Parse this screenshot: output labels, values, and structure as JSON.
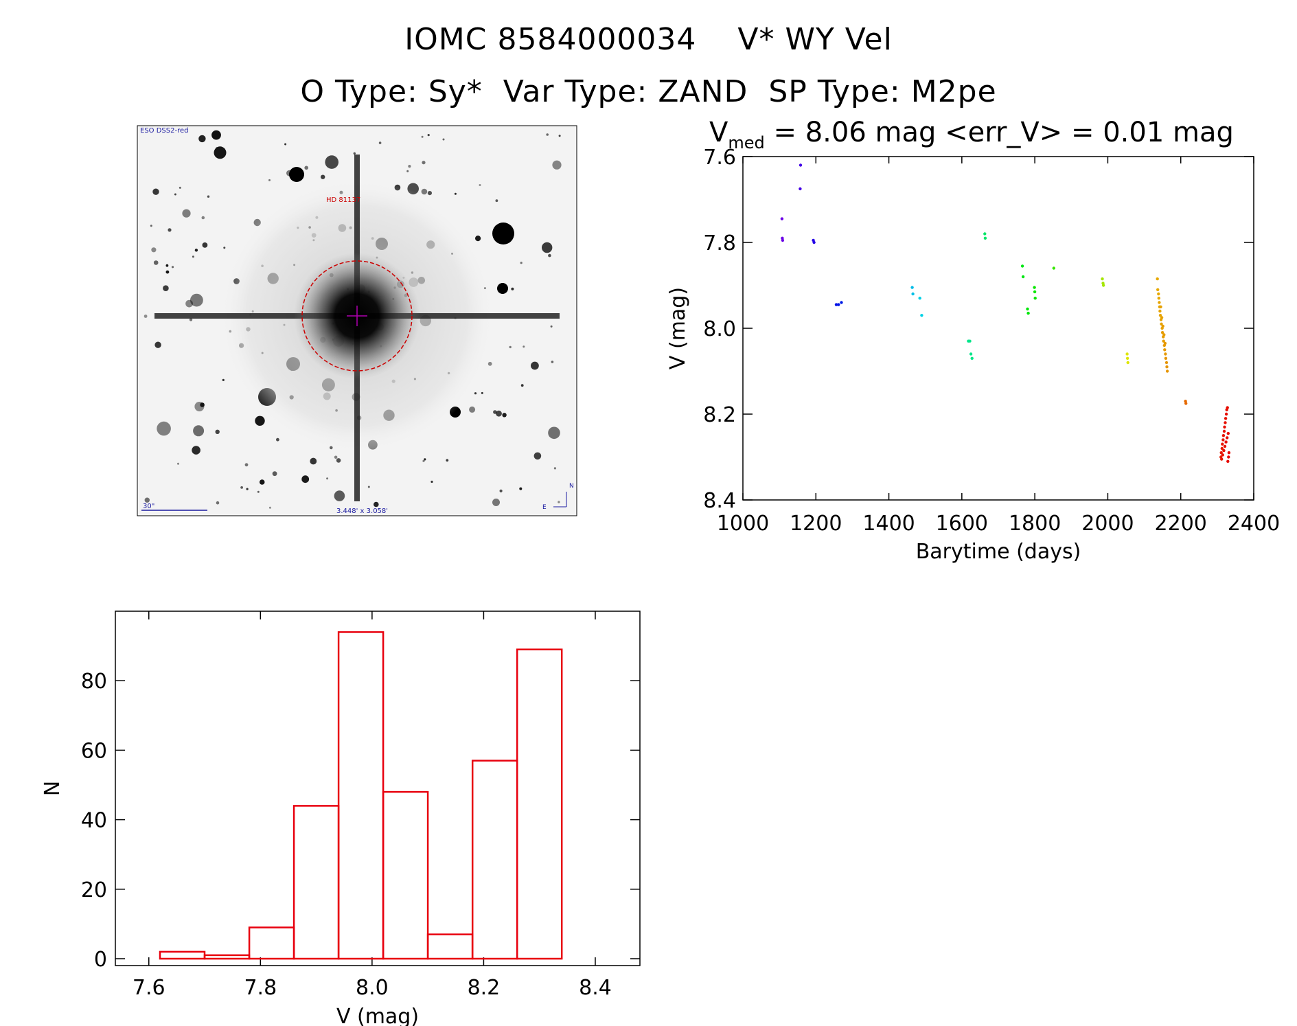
{
  "header": {
    "title_line1": "IOMC 8584000034    V* WY Vel",
    "title_line2": "O Type: Sy*  Var Type: ZAND  SP Type: M2pe"
  },
  "finder_image": {
    "top_left_label": "ESO DSS2-red",
    "target_label": "HD 81137",
    "scale_bar_label": "30\"",
    "field_size_label": "3.448' x 3.058'",
    "compass_north": "N",
    "compass_east": "E"
  },
  "colors": {
    "histogram": "#e8000e",
    "marker_ring": "#cc0000",
    "label_blue": "#1a1aa0",
    "label_red": "#cc0000"
  },
  "chart_data": [
    {
      "type": "scatter",
      "title_main": "V",
      "title_sub": "med",
      "title_rest": " = 8.06 mag <err_V> = 0.01 mag",
      "xlabel": "Barytime (days)",
      "ylabel": "V (mag)",
      "xlim": [
        1000,
        2400
      ],
      "ylim": [
        8.4,
        7.6
      ],
      "y_inverted": true,
      "xticks": [
        1000,
        1200,
        1400,
        1600,
        1800,
        2000,
        2200,
        2400
      ],
      "yticks": [
        7.6,
        7.8,
        8.0,
        8.2,
        8.4
      ],
      "color_scale": "rainbow by time",
      "points": [
        [
          1107,
          7.745
        ],
        [
          1108,
          7.79
        ],
        [
          1109,
          7.795
        ],
        [
          1158,
          7.62
        ],
        [
          1157,
          7.675
        ],
        [
          1193,
          7.795
        ],
        [
          1195,
          7.8
        ],
        [
          1256,
          7.945
        ],
        [
          1262,
          7.945
        ],
        [
          1270,
          7.94
        ],
        [
          1464,
          7.905
        ],
        [
          1466,
          7.92
        ],
        [
          1485,
          7.93
        ],
        [
          1490,
          7.97
        ],
        [
          1618,
          8.03
        ],
        [
          1622,
          8.03
        ],
        [
          1625,
          8.06
        ],
        [
          1628,
          8.07
        ],
        [
          1663,
          7.78
        ],
        [
          1664,
          7.79
        ],
        [
          1766,
          7.855
        ],
        [
          1768,
          7.88
        ],
        [
          1780,
          7.955
        ],
        [
          1782,
          7.965
        ],
        [
          1799,
          7.905
        ],
        [
          1800,
          7.915
        ],
        [
          1801,
          7.93
        ],
        [
          1852,
          7.86
        ],
        [
          1985,
          7.885
        ],
        [
          1987,
          7.895
        ],
        [
          1988,
          7.9
        ],
        [
          2053,
          8.06
        ],
        [
          2054,
          8.07
        ],
        [
          2055,
          8.08
        ],
        [
          2136,
          7.885
        ],
        [
          2137,
          7.91
        ],
        [
          2139,
          7.92
        ],
        [
          2140,
          7.93
        ],
        [
          2142,
          7.95
        ],
        [
          2143,
          7.96
        ],
        [
          2144,
          7.97
        ],
        [
          2146,
          7.98
        ],
        [
          2147,
          7.99
        ],
        [
          2149,
          8.0
        ],
        [
          2150,
          8.01
        ],
        [
          2152,
          8.02
        ],
        [
          2153,
          8.03
        ],
        [
          2155,
          8.04
        ],
        [
          2156,
          8.05
        ],
        [
          2158,
          8.06
        ],
        [
          2159,
          8.07
        ],
        [
          2161,
          8.08
        ],
        [
          2162,
          8.09
        ],
        [
          2163,
          8.1
        ],
        [
          2141,
          7.94
        ],
        [
          2145,
          7.95
        ],
        [
          2148,
          7.975
        ],
        [
          2151,
          7.995
        ],
        [
          2154,
          8.015
        ],
        [
          2157,
          8.035
        ],
        [
          2213,
          8.17
        ],
        [
          2214,
          8.175
        ],
        [
          2310,
          8.3
        ],
        [
          2311,
          8.29
        ],
        [
          2313,
          8.28
        ],
        [
          2314,
          8.27
        ],
        [
          2316,
          8.26
        ],
        [
          2317,
          8.25
        ],
        [
          2319,
          8.24
        ],
        [
          2320,
          8.23
        ],
        [
          2322,
          8.22
        ],
        [
          2323,
          8.21
        ],
        [
          2325,
          8.2
        ],
        [
          2326,
          8.19
        ],
        [
          2328,
          8.185
        ],
        [
          2315,
          8.295
        ],
        [
          2318,
          8.285
        ],
        [
          2321,
          8.275
        ],
        [
          2324,
          8.265
        ],
        [
          2327,
          8.255
        ],
        [
          2330,
          8.245
        ],
        [
          2331,
          8.3
        ],
        [
          2329,
          8.31
        ],
        [
          2312,
          8.305
        ],
        [
          2332,
          8.29
        ]
      ]
    },
    {
      "type": "histogram",
      "xlabel": "V (mag)",
      "ylabel": "N",
      "xlim": [
        7.54,
        8.48
      ],
      "ylim": [
        0,
        100
      ],
      "xticks": [
        7.6,
        7.8,
        8.0,
        8.2,
        8.4
      ],
      "yticks": [
        0,
        20,
        40,
        60,
        80
      ],
      "bins": [
        {
          "x0": 7.62,
          "x1": 7.7,
          "count": 2
        },
        {
          "x0": 7.7,
          "x1": 7.78,
          "count": 1
        },
        {
          "x0": 7.78,
          "x1": 7.86,
          "count": 9
        },
        {
          "x0": 7.86,
          "x1": 7.94,
          "count": 44
        },
        {
          "x0": 7.94,
          "x1": 8.02,
          "count": 94
        },
        {
          "x0": 8.02,
          "x1": 8.1,
          "count": 48
        },
        {
          "x0": 8.1,
          "x1": 8.18,
          "count": 7
        },
        {
          "x0": 8.18,
          "x1": 8.26,
          "count": 57
        },
        {
          "x0": 8.26,
          "x1": 8.34,
          "count": 89
        }
      ]
    }
  ]
}
